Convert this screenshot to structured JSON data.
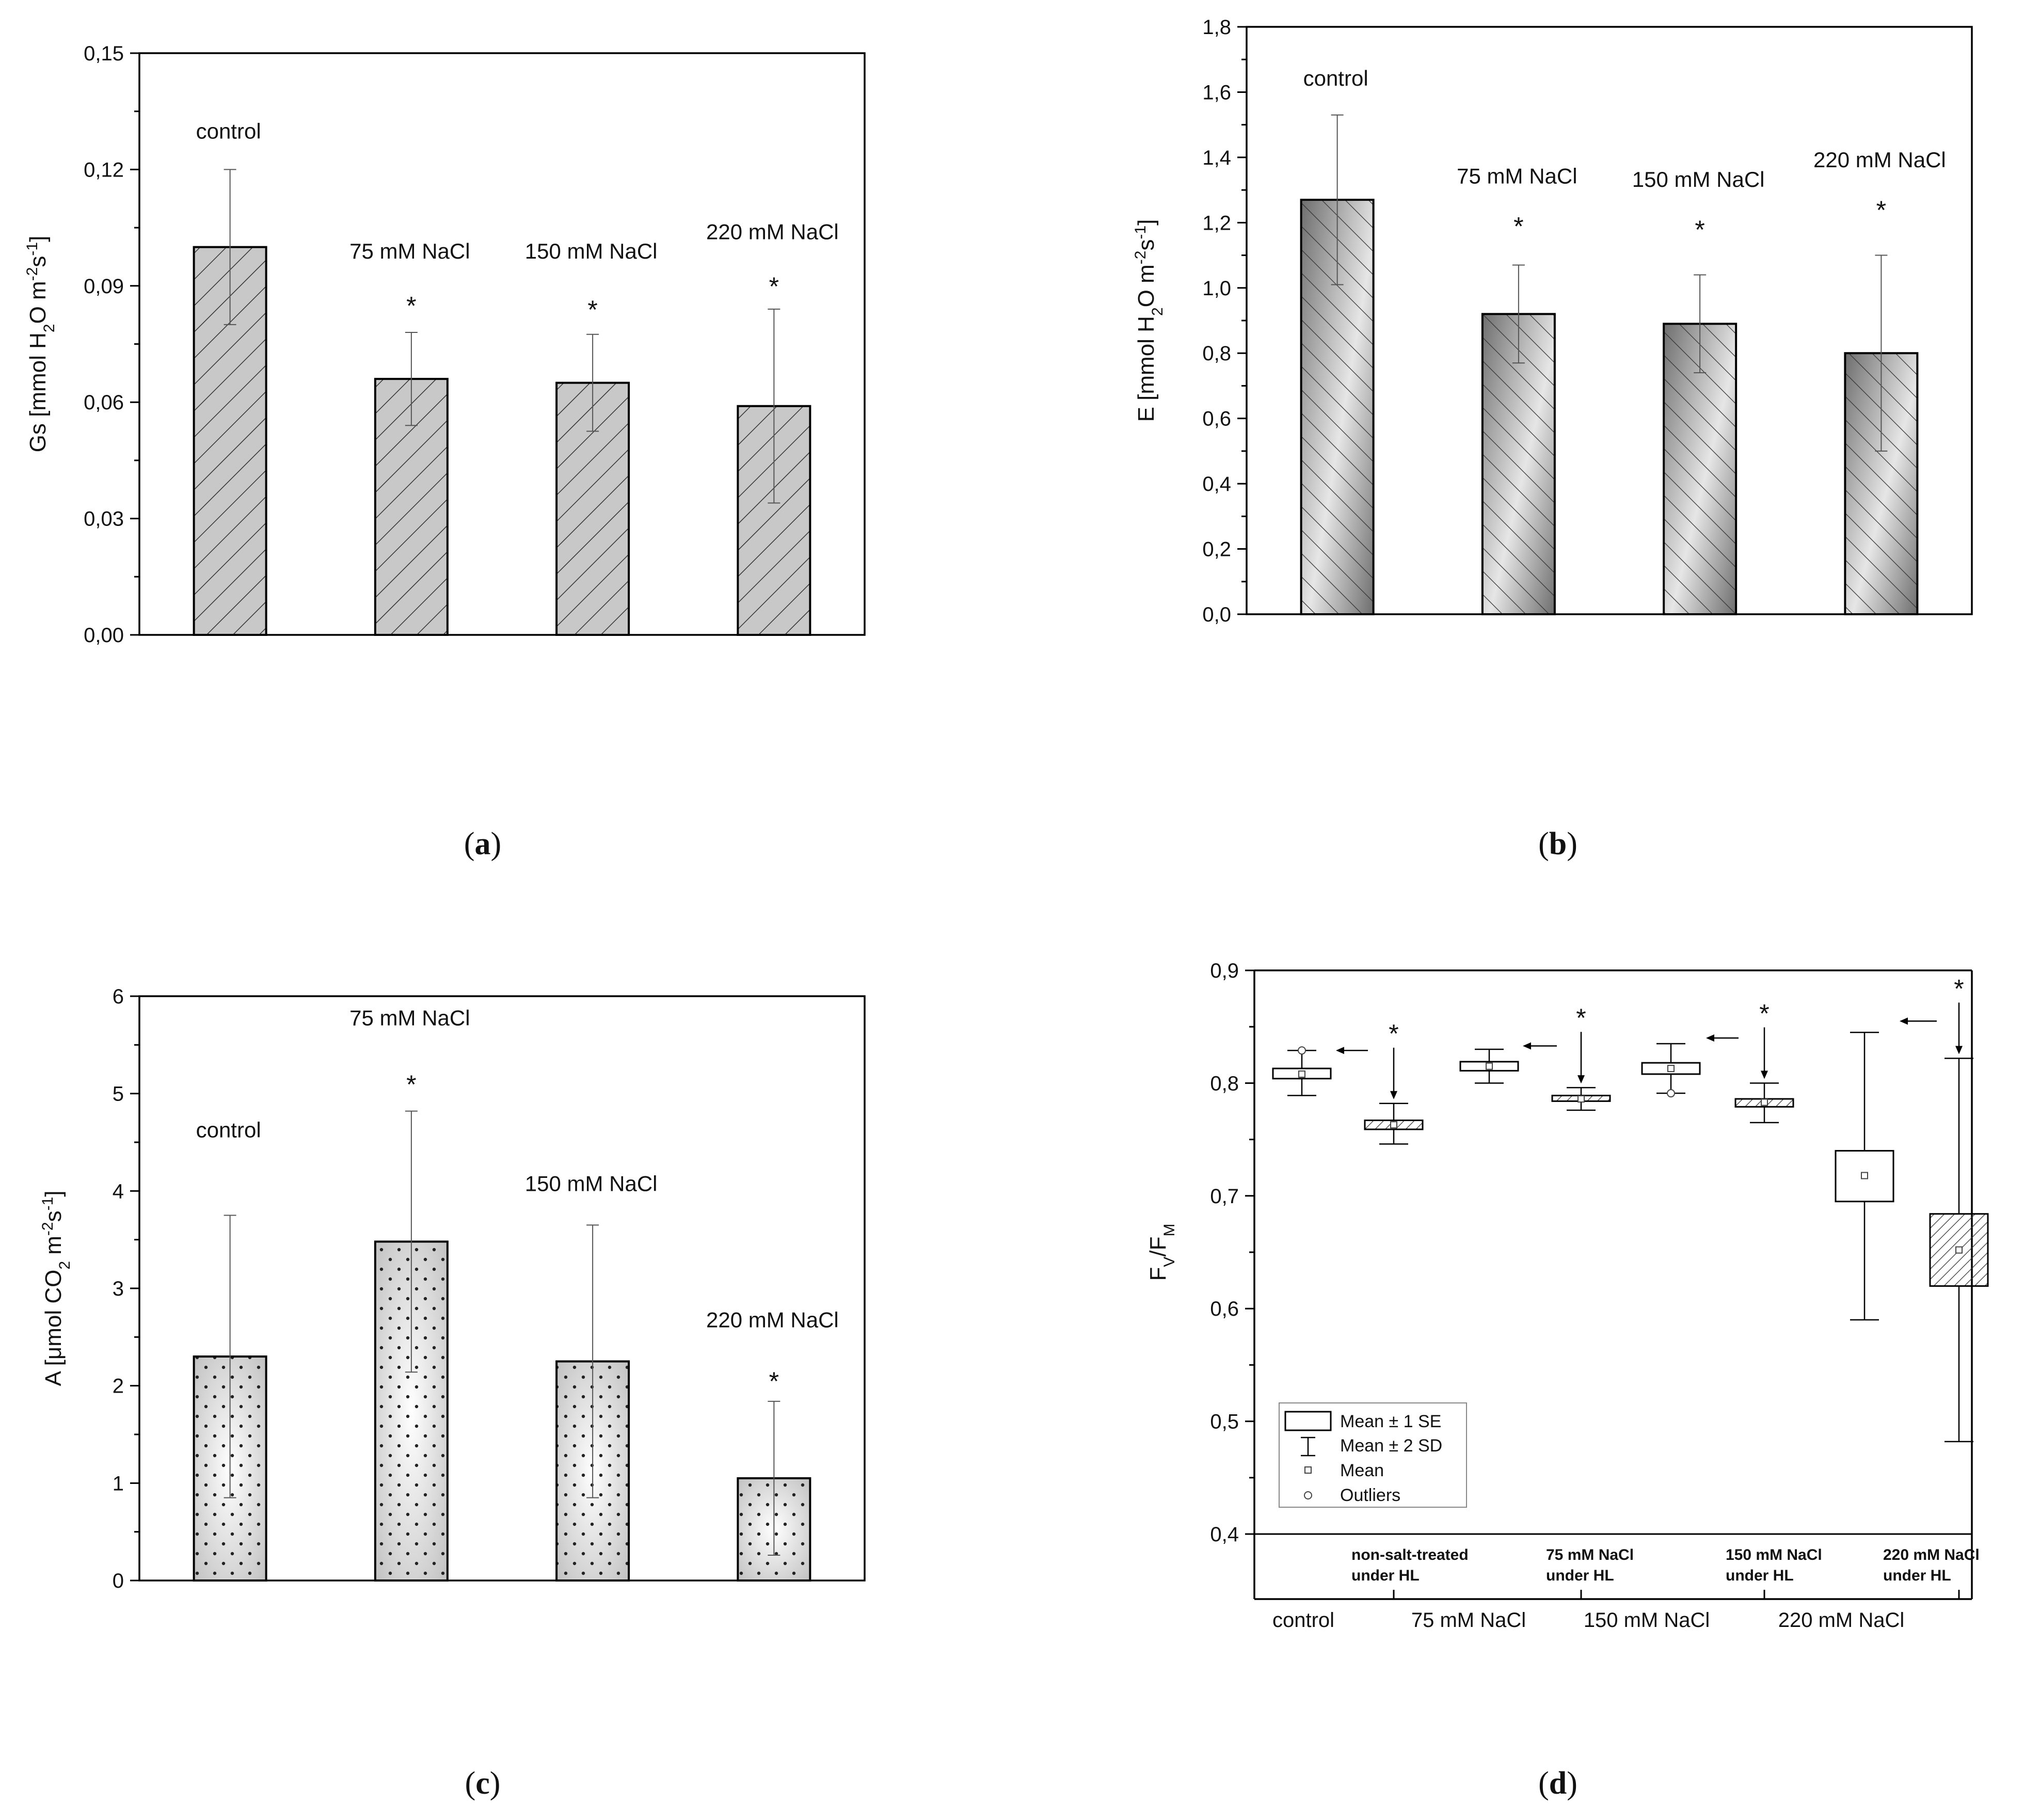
{
  "colors": {
    "axis": "#000000",
    "bar_a": "#c8c8c8",
    "bar_b_dark": "#6e6e6e",
    "bar_b_light": "#e6e6e6",
    "bar_c_dark": "#bdbdbd",
    "bar_c_light": "#ffffff",
    "hatch": "#333333"
  },
  "chart_data": [
    {
      "type": "bar",
      "panel": "a",
      "caption": "(a)",
      "title": "",
      "ylabel": "Gs [mmol H₂O m⁻²s⁻¹]",
      "ylabel_parts": [
        "Gs [mmol H",
        "2",
        "O m",
        "-2",
        "s",
        "-1",
        "]"
      ],
      "ylim": [
        0,
        0.15
      ],
      "yticks": [
        0,
        0.03,
        0.06,
        0.09,
        0.12,
        0.15
      ],
      "ytick_labels": [
        "0,00",
        "0,03",
        "0,06",
        "0,09",
        "0,12",
        "0,15"
      ],
      "categories": [
        "control",
        "75 mM NaCl",
        "150 mM NaCl",
        "220 mM NaCl"
      ],
      "values": [
        0.1,
        0.066,
        0.065,
        0.059
      ],
      "err_upper": [
        0.12,
        0.078,
        0.0775,
        0.084
      ],
      "err_lower": [
        0.08,
        0.054,
        0.0525,
        0.034
      ],
      "label_y": [
        0.128,
        0.097,
        0.097,
        0.102
      ],
      "significant": [
        false,
        true,
        true,
        true
      ],
      "star_y": [
        0,
        0.085,
        0.084,
        0.09
      ],
      "significance_marker": "*"
    },
    {
      "type": "bar",
      "panel": "b",
      "caption": "(b)",
      "title": "",
      "ylabel": "E [mmol H₂O m⁻²s⁻¹]",
      "ylabel_parts": [
        "E [mmol H",
        "2",
        "O m",
        "-2",
        "s",
        "-1",
        "]"
      ],
      "ylim": [
        0,
        1.8
      ],
      "yticks": [
        0,
        0.2,
        0.4,
        0.6,
        0.8,
        1.0,
        1.2,
        1.4,
        1.6,
        1.8
      ],
      "ytick_labels": [
        "0,0",
        "0,2",
        "0,4",
        "0,6",
        "0,8",
        "1,0",
        "1,2",
        "1,4",
        "1,6",
        "1,8"
      ],
      "categories": [
        "control",
        "75 mM NaCl",
        "150 mM NaCl",
        "220 mM NaCl"
      ],
      "values": [
        1.27,
        0.92,
        0.89,
        0.8
      ],
      "err_upper": [
        1.53,
        1.07,
        1.04,
        1.1
      ],
      "err_lower": [
        1.01,
        0.77,
        0.74,
        0.5
      ],
      "label_y": [
        1.62,
        1.32,
        1.31,
        1.37
      ],
      "significant": [
        false,
        true,
        true,
        true
      ],
      "star_y": [
        0,
        1.19,
        1.18,
        1.24
      ],
      "significance_marker": "*"
    },
    {
      "type": "bar",
      "panel": "c",
      "caption": "(c)",
      "title": "",
      "ylabel": "A [μmol CO₂ m⁻²s⁻¹]",
      "ylabel_parts": [
        "A [μmol CO",
        "2",
        " m",
        "-2",
        "s",
        "-1",
        "]"
      ],
      "ylim": [
        0,
        6
      ],
      "yticks": [
        0,
        1,
        2,
        3,
        4,
        5,
        6
      ],
      "ytick_labels": [
        "0",
        "1",
        "2",
        "3",
        "4",
        "5",
        "6"
      ],
      "categories": [
        "control",
        "75 mM NaCl",
        "150 mM NaCl",
        "220 mM NaCl"
      ],
      "values": [
        2.3,
        3.48,
        2.25,
        1.05
      ],
      "err_upper": [
        3.75,
        4.82,
        3.65,
        1.84
      ],
      "err_lower": [
        0.85,
        2.14,
        0.85,
        0.26
      ],
      "label_y": [
        4.55,
        5.7,
        4.0,
        2.6
      ],
      "significant": [
        false,
        true,
        false,
        true
      ],
      "star_y": [
        0,
        5.1,
        0,
        2.05
      ],
      "significance_marker": "*"
    },
    {
      "type": "box",
      "panel": "d",
      "caption": "(d)",
      "ylabel": "FV/FM",
      "ylabel_parts": [
        "F",
        "V",
        "/F",
        "M"
      ],
      "ylim": [
        0.4,
        0.9
      ],
      "yticks": [
        0.4,
        0.5,
        0.6,
        0.7,
        0.8,
        0.9
      ],
      "ytick_labels": [
        "0,4",
        "0,5",
        "0,6",
        "0,7",
        "0,8",
        "0,9"
      ],
      "group_labels": [
        "control",
        "75 mM NaCl",
        "150 mM NaCl",
        "220 mM NaCl"
      ],
      "salt_labels": [
        [
          "non-salt-treated",
          "under HL"
        ],
        [
          "75 mM NaCl",
          "under HL"
        ],
        [
          "150 mM NaCl",
          "under HL"
        ],
        [
          "220 mM NaCl",
          "under HL"
        ]
      ],
      "boxes": [
        {
          "group": "control",
          "hl": false,
          "se_low": 0.804,
          "se_high": 0.813,
          "sd_low": 0.789,
          "sd_high": 0.829,
          "mean": 0.808,
          "outliers": [
            0.829
          ]
        },
        {
          "group": "control",
          "hl": true,
          "se_low": 0.759,
          "se_high": 0.767,
          "sd_low": 0.746,
          "sd_high": 0.782,
          "mean": 0.763,
          "outliers": []
        },
        {
          "group": "75 mM NaCl",
          "hl": false,
          "se_low": 0.811,
          "se_high": 0.819,
          "sd_low": 0.8,
          "sd_high": 0.83,
          "mean": 0.815,
          "outliers": []
        },
        {
          "group": "75 mM NaCl",
          "hl": true,
          "se_low": 0.784,
          "se_high": 0.789,
          "sd_low": 0.776,
          "sd_high": 0.796,
          "mean": 0.786,
          "outliers": []
        },
        {
          "group": "150 mM NaCl",
          "hl": false,
          "se_low": 0.808,
          "se_high": 0.818,
          "sd_low": 0.791,
          "sd_high": 0.835,
          "mean": 0.813,
          "outliers": [
            0.791
          ]
        },
        {
          "group": "150 mM NaCl",
          "hl": true,
          "se_low": 0.779,
          "se_high": 0.786,
          "sd_low": 0.765,
          "sd_high": 0.8,
          "mean": 0.783,
          "outliers": []
        },
        {
          "group": "220 mM NaCl",
          "hl": false,
          "se_low": 0.695,
          "se_high": 0.74,
          "sd_low": 0.59,
          "sd_high": 0.845,
          "mean": 0.718,
          "outliers": []
        },
        {
          "group": "220 mM NaCl",
          "hl": true,
          "se_low": 0.62,
          "se_high": 0.684,
          "sd_low": 0.482,
          "sd_high": 0.822,
          "mean": 0.652,
          "outliers": []
        }
      ],
      "significant_hl": [
        true,
        true,
        true,
        true
      ],
      "significance_marker": "*",
      "legend": [
        "Mean ± 1 SE",
        "Mean ± 2 SD",
        "Mean",
        "Outliers"
      ]
    }
  ]
}
